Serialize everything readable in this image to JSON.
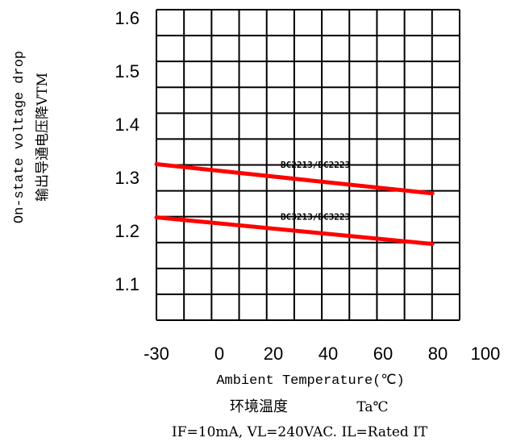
{
  "chart_data": {
    "type": "line",
    "title": "",
    "ylabel_en": "On-state voltage drop",
    "ylabel_cn": "输出导通电压降VTM",
    "xlabel_en": "Ambient Temperature(℃)",
    "xlabel_cn": "环境温度",
    "xlabel_unit": "Ta℃",
    "condition": "IF=10mA, VL=240VAC. IL=Rated  IT",
    "xticks": [
      "-30",
      "0",
      "20",
      "40",
      "60",
      "80",
      "100"
    ],
    "yticks": [
      "1.6",
      "1.5",
      "1.4",
      "1.3",
      "1.2",
      "1.1"
    ],
    "xlim": [
      -30,
      100
    ],
    "ylim": [
      1.05,
      1.6
    ],
    "grid": true,
    "line_color": "#ff0000",
    "series": [
      {
        "name": "BC2213/BC2223",
        "x": [
          -30,
          78
        ],
        "y": [
          1.325,
          1.27
        ]
      },
      {
        "name": "BC3213/BC3223",
        "x": [
          -30,
          78
        ],
        "y": [
          1.225,
          1.175
        ]
      }
    ]
  }
}
